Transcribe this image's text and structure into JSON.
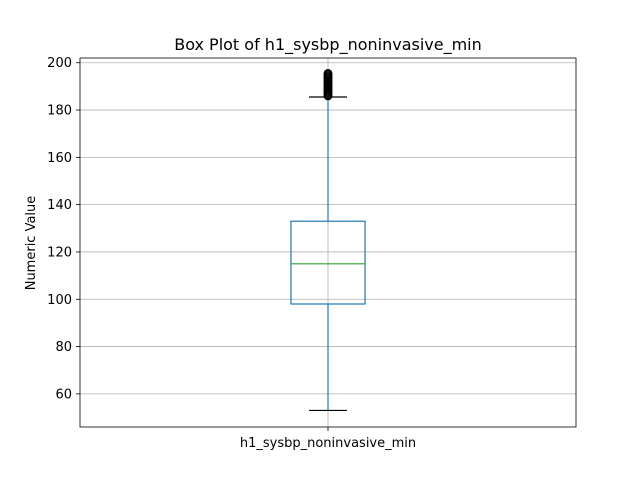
{
  "chart_data": {
    "type": "box",
    "title": "Box Plot of h1_sysbp_noninvasive_min",
    "xlabel": "",
    "ylabel": "Numeric Value",
    "categories": [
      "h1_sysbp_noninvasive_min"
    ],
    "ylim": [
      46,
      202
    ],
    "yticks": [
      60,
      80,
      100,
      120,
      140,
      160,
      180,
      200
    ],
    "grid": true,
    "boxes": [
      {
        "name": "h1_sysbp_noninvasive_min",
        "whisker_low": 53,
        "q1": 98,
        "median": 115,
        "q3": 133,
        "whisker_high": 185.5,
        "outliers": [
          186,
          186.5,
          187,
          187.5,
          188,
          188.5,
          189,
          189.5,
          190,
          190.5,
          191,
          191.5,
          192,
          192.5,
          193,
          193.5,
          194,
          194.5,
          195,
          195.5
        ],
        "colors": {
          "box": "#1f77b4",
          "median": "#2ca02c",
          "whisker": "#1f77b4",
          "cap": "#000000",
          "outlier": "#000000"
        }
      }
    ]
  }
}
